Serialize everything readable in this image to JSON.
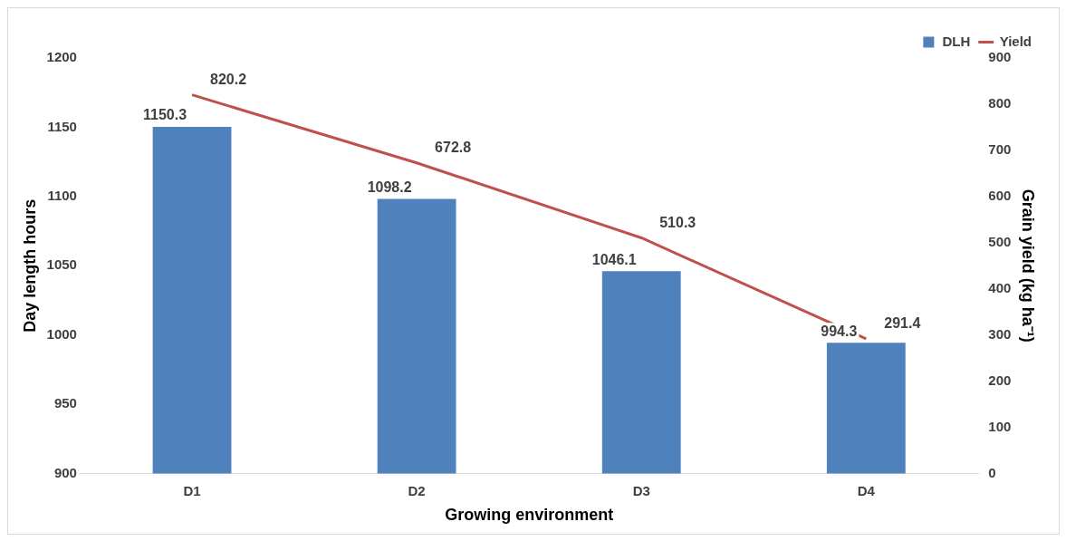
{
  "chart_data": {
    "type": "bar",
    "xlabel": "Growing environment",
    "ylabel": "Day length hours",
    "y2label": "Grain yield (kg ha⁻¹)",
    "categories": [
      "D1",
      "D2",
      "D3",
      "D4"
    ],
    "series": [
      {
        "name": "DLH",
        "color": "#4f81bd",
        "values": [
          1150.3,
          1098.2,
          1046.1,
          994.3
        ]
      },
      {
        "name": "Yield",
        "type": "line",
        "color": "#c0504d",
        "axis": "y2",
        "values": [
          820.2,
          672.8,
          510.3,
          291.4
        ]
      }
    ],
    "ylim": [
      900,
      1200
    ],
    "yticks": [
      900,
      950,
      1000,
      1050,
      1100,
      1150,
      1200
    ],
    "y2lim": [
      0,
      900
    ],
    "y2ticks": [
      0,
      100,
      200,
      300,
      400,
      500,
      600,
      700,
      800,
      900
    ],
    "grid": false,
    "legend": "top right",
    "marker": "none",
    "line_style": "solid",
    "data_labels": true
  }
}
